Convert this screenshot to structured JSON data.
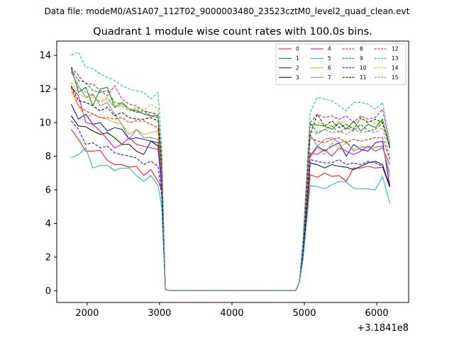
{
  "suptitle": "Data file: modeM0/AS1A07_112T02_9000003480_23523cztM0_level2_quad_clean.evt",
  "chart_data": {
    "type": "line",
    "title": "Quadrant 1 module wise count rates with 100.0s bins.",
    "xlabel": "",
    "ylabel": "",
    "x_offset_label": "+3.1841e8",
    "xlim": [
      1580,
      6440
    ],
    "ylim": [
      -0.7,
      14.85
    ],
    "xticks": [
      2000,
      3000,
      4000,
      5000,
      6000
    ],
    "yticks": [
      0,
      2,
      4,
      6,
      8,
      10,
      12,
      14
    ],
    "grid": false,
    "legend_position": "top-right",
    "legend_columns": 4,
    "x": [
      1780,
      1880,
      1980,
      2080,
      2180,
      2280,
      2380,
      2480,
      2580,
      2680,
      2780,
      2880,
      2980,
      3030,
      3080,
      3180,
      3280,
      3380,
      3480,
      3580,
      3680,
      3780,
      3880,
      3980,
      4080,
      4180,
      4280,
      4380,
      4480,
      4580,
      4680,
      4780,
      4880,
      4930,
      4980,
      5080,
      5180,
      5280,
      5380,
      5480,
      5580,
      5680,
      5780,
      5880,
      5980,
      6080,
      6180
    ],
    "series": [
      {
        "name": "0",
        "color": "#ff0000",
        "dash": "solid",
        "values": [
          9.6,
          9.0,
          8.3,
          8.3,
          8.35,
          7.75,
          7.5,
          7.5,
          7.35,
          7.4,
          6.85,
          7.2,
          6.5,
          6.0,
          0.05,
          0,
          0,
          0,
          0,
          0,
          0,
          0,
          0,
          0,
          0,
          0,
          0,
          0,
          0,
          0,
          0,
          0,
          0,
          0.5,
          2.0,
          6.9,
          6.75,
          7.0,
          6.8,
          6.85,
          6.5,
          7.3,
          7.3,
          7.4,
          7.3,
          7.35,
          6.15
        ]
      },
      {
        "name": "1",
        "color": "#008000",
        "dash": "solid",
        "values": [
          13.3,
          11.8,
          12.1,
          11.0,
          12.0,
          12.1,
          10.9,
          11.2,
          10.8,
          10.7,
          10.5,
          10.4,
          10.4,
          8.0,
          0.05,
          0,
          0,
          0,
          0,
          0,
          0,
          0,
          0,
          0,
          0,
          0,
          0,
          0,
          0,
          0,
          0,
          0,
          0,
          0.5,
          2.5,
          9.9,
          9.85,
          9.8,
          9.6,
          10.0,
          9.6,
          10.1,
          9.5,
          9.9,
          9.7,
          10.2,
          8.5
        ]
      },
      {
        "name": "2",
        "color": "#0000ff",
        "dash": "solid",
        "values": [
          11.1,
          10.2,
          10.5,
          9.9,
          10.0,
          9.5,
          9.7,
          9.6,
          9.0,
          9.1,
          9.0,
          8.9,
          8.8,
          6.5,
          0.05,
          0,
          0,
          0,
          0,
          0,
          0,
          0,
          0,
          0,
          0,
          0,
          0,
          0,
          0,
          0,
          0,
          0,
          0,
          0.5,
          2.3,
          8.0,
          8.6,
          8.3,
          8.6,
          8.8,
          8.0,
          8.7,
          8.4,
          8.3,
          8.8,
          8.9,
          6.2
        ]
      },
      {
        "name": "3",
        "color": "#000000",
        "dash": "solid",
        "values": [
          10.4,
          9.8,
          9.75,
          9.5,
          9.3,
          9.4,
          9.1,
          8.7,
          8.7,
          8.3,
          8.1,
          8.9,
          8.6,
          6.0,
          0.05,
          0,
          0,
          0,
          0,
          0,
          0,
          0,
          0,
          0,
          0,
          0,
          0,
          0,
          0,
          0,
          0,
          0,
          0,
          0.5,
          2.0,
          7.6,
          7.5,
          7.3,
          7.5,
          7.4,
          7.35,
          7.2,
          7.4,
          7.6,
          7.7,
          7.5,
          6.2
        ]
      },
      {
        "name": "4",
        "color": "#bf00bf",
        "dash": "solid",
        "values": [
          12.1,
          11.6,
          10.0,
          9.9,
          9.5,
          9.0,
          8.5,
          8.7,
          9.1,
          8.7,
          8.6,
          8.5,
          8.4,
          6.2,
          0.05,
          0,
          0,
          0,
          0,
          0,
          0,
          0,
          0,
          0,
          0,
          0,
          0,
          0,
          0,
          0,
          0,
          0,
          0,
          0.5,
          2.2,
          8.2,
          8.1,
          8.4,
          8.0,
          8.5,
          8.3,
          8.1,
          8.3,
          8.6,
          8.3,
          8.5,
          7.5
        ]
      },
      {
        "name": "5",
        "color": "#00bfbf",
        "dash": "solid",
        "values": [
          7.9,
          8.1,
          8.5,
          7.3,
          7.45,
          7.45,
          7.15,
          7.3,
          7.3,
          6.85,
          6.5,
          6.85,
          6.25,
          5.0,
          0.05,
          0,
          0,
          0,
          0,
          0,
          0,
          0,
          0,
          0,
          0,
          0,
          0,
          0,
          0,
          0,
          0,
          0,
          0,
          0.5,
          1.8,
          6.25,
          6.2,
          6.05,
          6.3,
          6.5,
          6.45,
          6.1,
          6.05,
          6.05,
          6.0,
          6.8,
          5.2
        ]
      },
      {
        "name": "6",
        "color": "#bfbf00",
        "dash": "solid",
        "values": [
          11.9,
          11.0,
          10.3,
          10.5,
          10.3,
          10.2,
          10.0,
          9.9,
          9.3,
          9.6,
          9.3,
          9.4,
          9.5,
          7.0,
          0.05,
          0,
          0,
          0,
          0,
          0,
          0,
          0,
          0,
          0,
          0,
          0,
          0,
          0,
          0,
          0,
          0,
          0,
          0,
          0.5,
          2.4,
          7.9,
          8.5,
          8.1,
          8.8,
          8.5,
          8.8,
          8.4,
          8.6,
          8.5,
          8.6,
          8.6,
          7.0
        ]
      },
      {
        "name": "7",
        "color": "#808080",
        "dash": "solid",
        "values": [
          13.0,
          12.2,
          11.5,
          11.7,
          11.0,
          11.2,
          10.5,
          9.9,
          9.0,
          9.6,
          9.1,
          9.1,
          9.0,
          6.8,
          0.05,
          0,
          0,
          0,
          0,
          0,
          0,
          0,
          0,
          0,
          0,
          0,
          0,
          0,
          0,
          0,
          0,
          0,
          0,
          0.5,
          2.6,
          9.3,
          8.6,
          9.0,
          9.1,
          8.8,
          8.9,
          8.3,
          8.5,
          8.6,
          8.5,
          8.6,
          6.8
        ]
      },
      {
        "name": "8",
        "color": "#ff0000",
        "dash": "dashed",
        "values": [
          12.1,
          11.0,
          10.7,
          10.5,
          10.3,
          10.3,
          10.2,
          10.3,
          10.0,
          10.1,
          10.1,
          9.9,
          9.7,
          7.2,
          0.05,
          0,
          0,
          0,
          0,
          0,
          0,
          0,
          0,
          0,
          0,
          0,
          0,
          0,
          0,
          0,
          0,
          0,
          0,
          0.5,
          2.5,
          9.1,
          8.9,
          8.8,
          9.0,
          9.1,
          8.8,
          9.0,
          8.9,
          9.0,
          9.1,
          9.1,
          7.8
        ]
      },
      {
        "name": "9",
        "color": "#008000",
        "dash": "dashed",
        "values": [
          13.2,
          12.5,
          12.4,
          11.9,
          11.8,
          11.9,
          11.2,
          11.1,
          10.8,
          10.6,
          10.7,
          10.4,
          10.3,
          7.9,
          0.05,
          0,
          0,
          0,
          0,
          0,
          0,
          0,
          0,
          0,
          0,
          0,
          0,
          0,
          0,
          0,
          0,
          0,
          0,
          0.5,
          2.8,
          10.0,
          9.4,
          9.6,
          9.8,
          9.4,
          9.7,
          9.5,
          9.9,
          9.5,
          9.6,
          10.0,
          8.6
        ]
      },
      {
        "name": "10",
        "color": "#0000ff",
        "dash": "dashed",
        "values": [
          10.1,
          9.6,
          8.7,
          8.8,
          8.5,
          8.6,
          8.2,
          8.1,
          8.0,
          7.9,
          7.5,
          7.7,
          7.4,
          5.6,
          0.05,
          0,
          0,
          0,
          0,
          0,
          0,
          0,
          0,
          0,
          0,
          0,
          0,
          0,
          0,
          0,
          0,
          0,
          0,
          0.5,
          2.1,
          7.8,
          7.7,
          7.6,
          7.6,
          7.8,
          7.5,
          7.6,
          7.5,
          7.7,
          7.6,
          7.4,
          6.3
        ]
      },
      {
        "name": "11",
        "color": "#000000",
        "dash": "dashed",
        "values": [
          12.2,
          11.3,
          11.2,
          11.0,
          10.7,
          10.9,
          10.4,
          10.6,
          10.3,
          10.2,
          10.2,
          10.3,
          10.1,
          7.4,
          0.05,
          0,
          0,
          0,
          0,
          0,
          0,
          0,
          0,
          0,
          0,
          0,
          0,
          0,
          0,
          0,
          0,
          0,
          0,
          0.5,
          2.7,
          9.3,
          10.5,
          9.8,
          10.1,
          9.7,
          9.9,
          9.6,
          10.3,
          10.0,
          10.2,
          10.0,
          8.5
        ]
      },
      {
        "name": "12",
        "color": "#bf00bf",
        "dash": "dashed",
        "values": [
          13.3,
          12.8,
          12.3,
          12.3,
          11.9,
          11.6,
          12.2,
          11.4,
          11.1,
          11.0,
          10.7,
          10.6,
          10.5,
          7.6,
          0.05,
          0,
          0,
          0,
          0,
          0,
          0,
          0,
          0,
          0,
          0,
          0,
          0,
          0,
          0,
          0,
          0,
          0,
          0,
          0.5,
          2.9,
          10.0,
          10.5,
          10.3,
          10.4,
          10.2,
          10.4,
          10.0,
          10.4,
          10.2,
          10.3,
          10.8,
          8.6
        ]
      },
      {
        "name": "13",
        "color": "#00bfbf",
        "dash": "dashed",
        "values": [
          14.0,
          14.2,
          13.3,
          13.2,
          12.9,
          12.7,
          12.5,
          12.2,
          12.0,
          11.9,
          11.8,
          11.4,
          11.8,
          8.5,
          0.05,
          0,
          0,
          0,
          0,
          0,
          0,
          0,
          0,
          0,
          0,
          0,
          0,
          0,
          0,
          0,
          0,
          0,
          0,
          0.5,
          3.0,
          10.6,
          11.5,
          11.4,
          11.3,
          11.0,
          10.7,
          11.2,
          11.2,
          11.1,
          10.8,
          11.2,
          8.8
        ]
      },
      {
        "name": "14",
        "color": "#bfbf00",
        "dash": "dashed",
        "values": [
          12.4,
          11.7,
          11.5,
          11.5,
          11.3,
          11.5,
          11.0,
          11.1,
          10.8,
          10.9,
          10.7,
          11.1,
          10.8,
          7.8,
          0.05,
          0,
          0,
          0,
          0,
          0,
          0,
          0,
          0,
          0,
          0,
          0,
          0,
          0,
          0,
          0,
          0,
          0,
          0,
          0.5,
          2.8,
          9.8,
          10.0,
          9.9,
          9.8,
          10.1,
          9.9,
          9.7,
          10.2,
          10.1,
          9.9,
          10.1,
          8.7
        ]
      },
      {
        "name": "15",
        "color": "#808080",
        "dash": "dashed",
        "values": [
          13.1,
          12.0,
          11.8,
          11.6,
          11.2,
          11.4,
          10.9,
          11.0,
          10.7,
          10.8,
          10.5,
          10.6,
          10.4,
          7.5,
          0.05,
          0,
          0,
          0,
          0,
          0,
          0,
          0,
          0,
          0,
          0,
          0,
          0,
          0,
          0,
          0,
          0,
          0,
          0,
          0.5,
          2.6,
          9.5,
          9.3,
          9.6,
          9.4,
          9.5,
          9.3,
          9.6,
          9.4,
          9.5,
          9.4,
          9.7,
          7.9
        ]
      }
    ]
  }
}
